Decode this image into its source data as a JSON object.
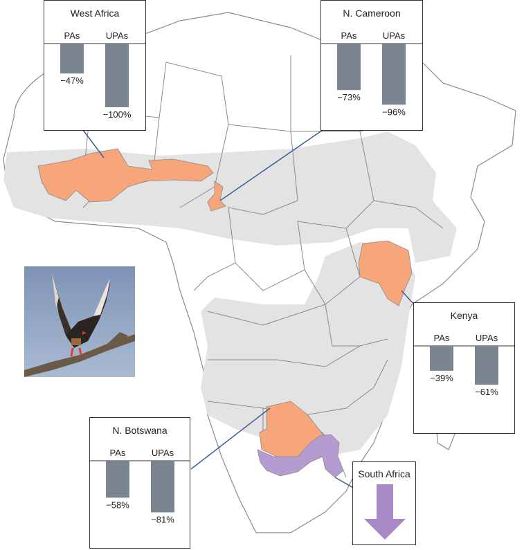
{
  "colors": {
    "land": "#e3e3e3",
    "border": "#8a8a8a",
    "declined_region": "#f7a57a",
    "south_africa_region": "#b49bd0",
    "bar": "#7a8591",
    "leader_line": "#3b5e96",
    "arrow": "#a889c8"
  },
  "chart_data": [
    {
      "type": "bar",
      "title": "West Africa",
      "categories": [
        "PAs",
        "UPAs"
      ],
      "values": [
        -47,
        -100
      ],
      "labels": [
        "−47%",
        "−100%"
      ],
      "ylim": [
        -100,
        0
      ]
    },
    {
      "type": "bar",
      "title": "N. Cameroon",
      "categories": [
        "PAs",
        "UPAs"
      ],
      "values": [
        -73,
        -96
      ],
      "labels": [
        "−73%",
        "−96%"
      ],
      "ylim": [
        -100,
        0
      ]
    },
    {
      "type": "bar",
      "title": "Kenya",
      "categories": [
        "PAs",
        "UPAs"
      ],
      "values": [
        -39,
        -61
      ],
      "labels": [
        "−39%",
        "−61%"
      ],
      "ylim": [
        -100,
        0
      ]
    },
    {
      "type": "bar",
      "title": "N. Botswana",
      "categories": [
        "PAs",
        "UPAs"
      ],
      "values": [
        -58,
        -81
      ],
      "labels": [
        "−58%",
        "−81%"
      ],
      "ylim": [
        -100,
        0
      ]
    }
  ],
  "south_africa": {
    "title": "South Africa",
    "icon": "down-arrow-icon"
  },
  "photo": {
    "icon": "eagle-photo-icon"
  }
}
